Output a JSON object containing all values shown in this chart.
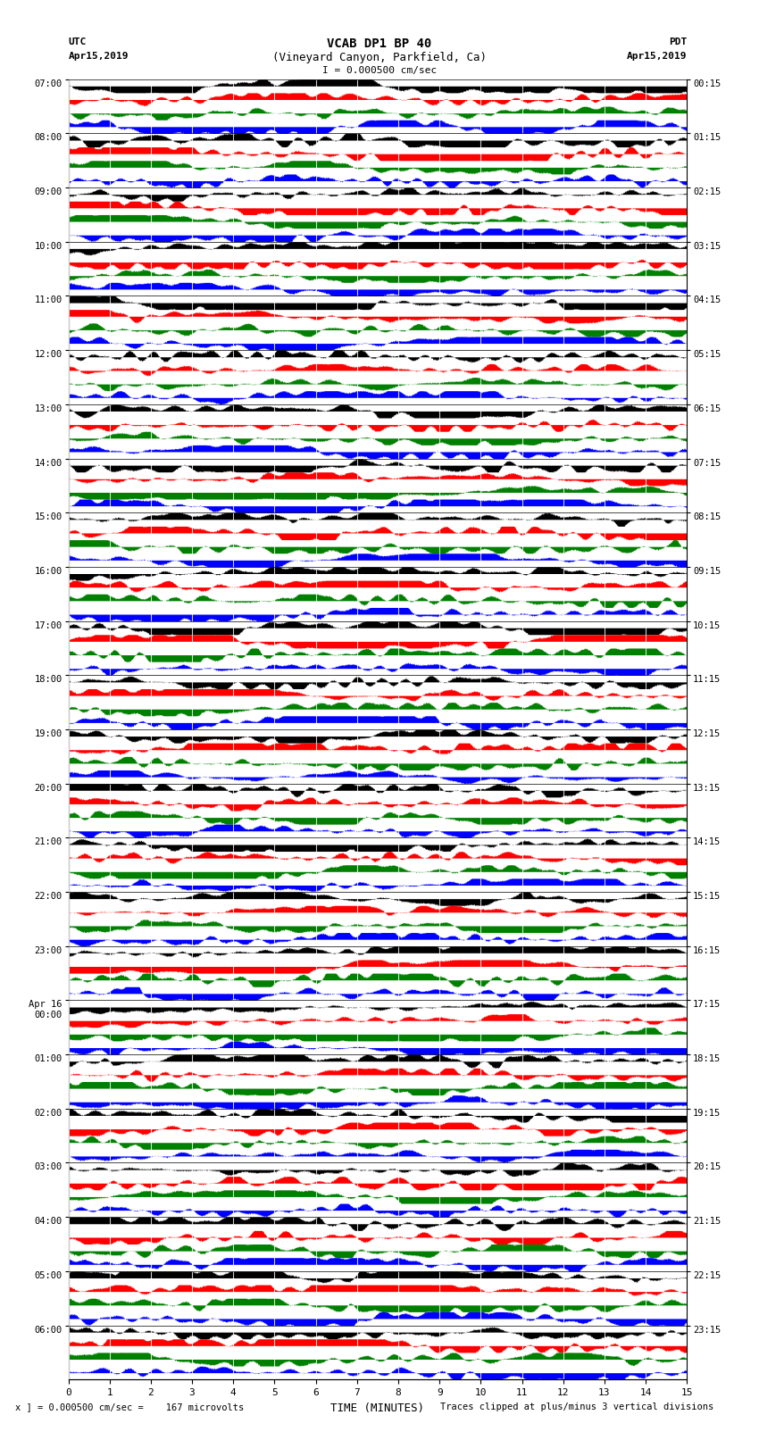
{
  "title_line1": "VCAB DP1 BP 40",
  "title_line2": "(Vineyard Canyon, Parkfield, Ca)",
  "scale_label": "I = 0.000500 cm/sec",
  "left_header_line1": "UTC",
  "left_header_line2": "Apr15,2019",
  "right_header_line1": "PDT",
  "right_header_line2": "Apr15,2019",
  "xlabel": "TIME (MINUTES)",
  "footer_left": "x ] = 0.000500 cm/sec =    167 microvolts",
  "footer_right": "Traces clipped at plus/minus 3 vertical divisions",
  "utc_times": [
    "07:00",
    "08:00",
    "09:00",
    "10:00",
    "11:00",
    "12:00",
    "13:00",
    "14:00",
    "15:00",
    "16:00",
    "17:00",
    "18:00",
    "19:00",
    "20:00",
    "21:00",
    "22:00",
    "23:00",
    "Apr 16\n00:00",
    "01:00",
    "02:00",
    "03:00",
    "04:00",
    "05:00",
    "06:00"
  ],
  "pdt_times": [
    "00:15",
    "01:15",
    "02:15",
    "03:15",
    "04:15",
    "05:15",
    "06:15",
    "07:15",
    "08:15",
    "09:15",
    "10:15",
    "11:15",
    "12:15",
    "13:15",
    "14:15",
    "15:15",
    "16:15",
    "17:15",
    "18:15",
    "19:15",
    "20:15",
    "21:15",
    "22:15",
    "23:15"
  ],
  "n_rows": 24,
  "n_minutes": 15,
  "bg_color": "white",
  "colors": {
    "red": "#ff0000",
    "green": "#008000",
    "blue": "#0000ff",
    "black": "#000000",
    "white": "#ffffff"
  },
  "figsize": [
    8.5,
    16.13
  ],
  "dpi": 100
}
